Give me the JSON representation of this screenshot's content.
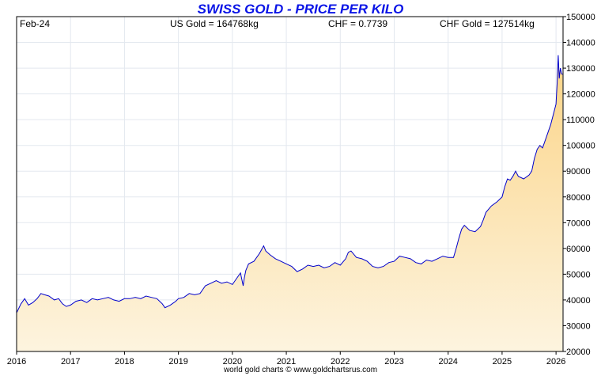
{
  "chart_data": {
    "type": "area",
    "title": "SWISS GOLD - PRICE PER KILO",
    "info": {
      "date": "Feb-24",
      "us_gold": "US Gold = 164768kg",
      "chf": "CHF = 0.7739",
      "chf_gold": "CHF Gold = 127514kg"
    },
    "footer": "world gold charts © www.goldchartsrus.com",
    "xlim": [
      2016,
      2026.13
    ],
    "ylim": [
      20000,
      150000
    ],
    "x_ticks": [
      2016,
      2017,
      2018,
      2019,
      2020,
      2021,
      2022,
      2023,
      2024,
      2025,
      2026
    ],
    "y_ticks": [
      20000,
      30000,
      40000,
      50000,
      60000,
      70000,
      80000,
      90000,
      100000,
      110000,
      120000,
      130000,
      140000,
      150000
    ],
    "y_axis_side": "right",
    "grid": true,
    "colors": {
      "line": "#0000cc",
      "fill_top": "#fbd487",
      "fill_bottom": "#fdf4df",
      "title": "#0a14e6"
    },
    "series": [
      {
        "x": [
          2016.0,
          2016.08,
          2016.15,
          2016.22,
          2016.3,
          2016.38,
          2016.45,
          2016.52,
          2016.6,
          2016.7,
          2016.78,
          2016.85,
          2016.92,
          2017.0,
          2017.1,
          2017.2,
          2017.3,
          2017.4,
          2017.5,
          2017.6,
          2017.7,
          2017.8,
          2017.9,
          2018.0,
          2018.1,
          2018.2,
          2018.3,
          2018.4,
          2018.5,
          2018.6,
          2018.7,
          2018.75,
          2018.85,
          2018.95,
          2019.0,
          2019.1,
          2019.2,
          2019.3,
          2019.4,
          2019.5,
          2019.6,
          2019.7,
          2019.8,
          2019.9,
          2020.0,
          2020.05,
          2020.1,
          2020.15,
          2020.2,
          2020.22,
          2020.25,
          2020.3,
          2020.4,
          2020.5,
          2020.58,
          2020.62,
          2020.7,
          2020.8,
          2020.9,
          2021.0,
          2021.1,
          2021.2,
          2021.3,
          2021.4,
          2021.5,
          2021.6,
          2021.7,
          2021.8,
          2021.9,
          2022.0,
          2022.1,
          2022.15,
          2022.2,
          2022.3,
          2022.4,
          2022.5,
          2022.6,
          2022.7,
          2022.8,
          2022.9,
          2023.0,
          2023.1,
          2023.2,
          2023.3,
          2023.4,
          2023.5,
          2023.6,
          2023.7,
          2023.8,
          2023.9,
          2024.0,
          2024.1,
          2024.15,
          2024.2,
          2024.25,
          2024.3,
          2024.4,
          2024.5,
          2024.6,
          2024.65,
          2024.7,
          2024.8,
          2024.9,
          2025.0,
          2025.05,
          2025.1,
          2025.15,
          2025.2,
          2025.25,
          2025.3,
          2025.4,
          2025.5,
          2025.55,
          2025.6,
          2025.65,
          2025.7,
          2025.75,
          2025.8,
          2025.85,
          2025.9,
          2025.95,
          2026.0,
          2026.02,
          2026.04,
          2026.06,
          2026.08,
          2026.1,
          2026.12
        ],
        "y": [
          35000,
          38500,
          40500,
          38000,
          39000,
          40500,
          42500,
          42000,
          41500,
          40000,
          40500,
          38500,
          37500,
          38000,
          39500,
          40000,
          39000,
          40500,
          40000,
          40500,
          41000,
          40000,
          39500,
          40500,
          40500,
          41000,
          40500,
          41500,
          41000,
          40500,
          38500,
          37000,
          38000,
          39500,
          40500,
          41000,
          42500,
          42000,
          42500,
          45500,
          46500,
          47500,
          46500,
          47000,
          46000,
          47500,
          49000,
          50500,
          45500,
          48500,
          51500,
          54000,
          55000,
          58000,
          61000,
          59000,
          57500,
          56000,
          55000,
          54000,
          53000,
          51000,
          52000,
          53500,
          53000,
          53500,
          52500,
          53000,
          54500,
          53500,
          56000,
          58500,
          59000,
          56500,
          56000,
          55000,
          53000,
          52500,
          53000,
          54500,
          55000,
          57000,
          56500,
          56000,
          54500,
          54000,
          55500,
          55000,
          56000,
          57000,
          56500,
          56500,
          60000,
          64000,
          67500,
          69000,
          67000,
          66500,
          68500,
          71000,
          74000,
          76500,
          78000,
          80000,
          84000,
          87000,
          86500,
          88000,
          90000,
          88000,
          87000,
          88500,
          90000,
          95000,
          98500,
          100000,
          99000,
          102000,
          105000,
          108000,
          112000,
          116000,
          124000,
          135000,
          126000,
          130000,
          128000,
          127500
        ]
      }
    ]
  }
}
